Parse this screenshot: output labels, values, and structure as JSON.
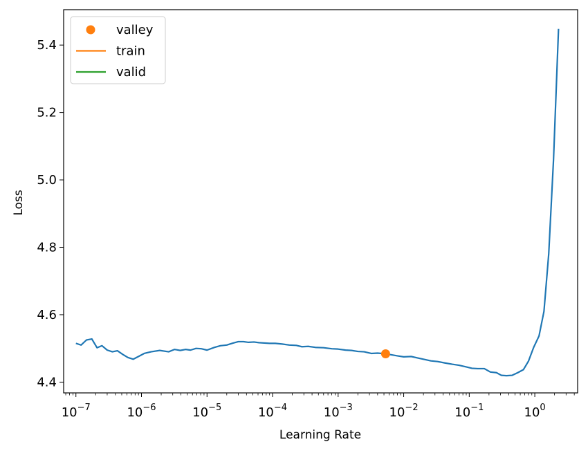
{
  "chart_data": {
    "type": "line",
    "xscale": "log",
    "xlabel": "Learning Rate",
    "ylabel": "Loss",
    "xlim": [
      6.5e-08,
      4.5
    ],
    "ylim": [
      4.368,
      5.505
    ],
    "x_ticks": [
      1e-07,
      1e-06,
      1e-05,
      0.0001,
      0.001,
      0.01,
      0.1,
      1
    ],
    "x_tick_labels": [
      [
        "10",
        "−7"
      ],
      [
        "10",
        "−6"
      ],
      [
        "10",
        "−5"
      ],
      [
        "10",
        "−4"
      ],
      [
        "10",
        "−3"
      ],
      [
        "10",
        "−2"
      ],
      [
        "10",
        "−1"
      ],
      [
        "10",
        "0"
      ]
    ],
    "y_ticks": [
      4.4,
      4.6,
      4.8,
      5.0,
      5.2,
      5.4
    ],
    "y_tick_labels": [
      "4.4",
      "4.6",
      "4.8",
      "5.0",
      "5.2",
      "5.4"
    ],
    "legend_position": "upper-left",
    "legend": [
      {
        "label": "valley",
        "color": "#ff7f0e",
        "marker": "dot"
      },
      {
        "label": "train",
        "color": "#ff7f0e",
        "marker": "line"
      },
      {
        "label": "valid",
        "color": "#2ca02c",
        "marker": "line"
      }
    ],
    "series": [
      {
        "color": "#1f77b4",
        "x": [
          1e-07,
          1.2e-07,
          1.45e-07,
          1.75e-07,
          2.1e-07,
          2.5e-07,
          3e-07,
          3.6e-07,
          4.3e-07,
          5.2e-07,
          6.2e-07,
          7.5e-07,
          9e-07,
          1.1e-06,
          1.4e-06,
          1.9e-06,
          2.6e-06,
          3.2e-06,
          3.9e-06,
          4.7e-06,
          5.6e-06,
          6.8e-06,
          8.2e-06,
          1e-05,
          1.3e-05,
          1.6e-05,
          2e-05,
          2.5e-05,
          3e-05,
          3.6e-05,
          4.3e-05,
          5.2e-05,
          6.2e-05,
          7.5e-05,
          9e-05,
          0.00011,
          0.00014,
          0.00018,
          0.00023,
          0.00028,
          0.00035,
          0.00045,
          0.0006,
          0.0008,
          0.001,
          0.0013,
          0.0016,
          0.002,
          0.0025,
          0.0032,
          0.004,
          0.0053,
          0.0065,
          0.008,
          0.01,
          0.013,
          0.016,
          0.02,
          0.026,
          0.033,
          0.042,
          0.055,
          0.07,
          0.09,
          0.11,
          0.135,
          0.17,
          0.21,
          0.26,
          0.31,
          0.37,
          0.45,
          0.55,
          0.67,
          0.8,
          0.96,
          1.16,
          1.38,
          1.63,
          1.93,
          2.3
        ],
        "y": [
          4.515,
          4.51,
          4.525,
          4.528,
          4.502,
          4.508,
          4.495,
          4.49,
          4.493,
          4.482,
          4.473,
          4.468,
          4.476,
          4.485,
          4.49,
          4.494,
          4.49,
          4.497,
          4.494,
          4.497,
          4.495,
          4.5,
          4.499,
          4.495,
          4.503,
          4.508,
          4.51,
          4.516,
          4.52,
          4.52,
          4.518,
          4.519,
          4.517,
          4.516,
          4.515,
          4.515,
          4.513,
          4.51,
          4.509,
          4.505,
          4.506,
          4.503,
          4.502,
          4.499,
          4.498,
          4.495,
          4.494,
          4.491,
          4.49,
          4.485,
          4.486,
          4.484,
          4.481,
          4.478,
          4.475,
          4.476,
          4.472,
          4.468,
          4.463,
          4.461,
          4.457,
          4.453,
          4.45,
          4.445,
          4.441,
          4.44,
          4.44,
          4.43,
          4.428,
          4.42,
          4.419,
          4.42,
          4.428,
          4.437,
          4.462,
          4.503,
          4.537,
          4.61,
          4.78,
          5.06,
          5.448
        ]
      }
    ],
    "valley_point": {
      "x": 0.0053,
      "y": 4.484,
      "color": "#ff7f0e"
    }
  }
}
